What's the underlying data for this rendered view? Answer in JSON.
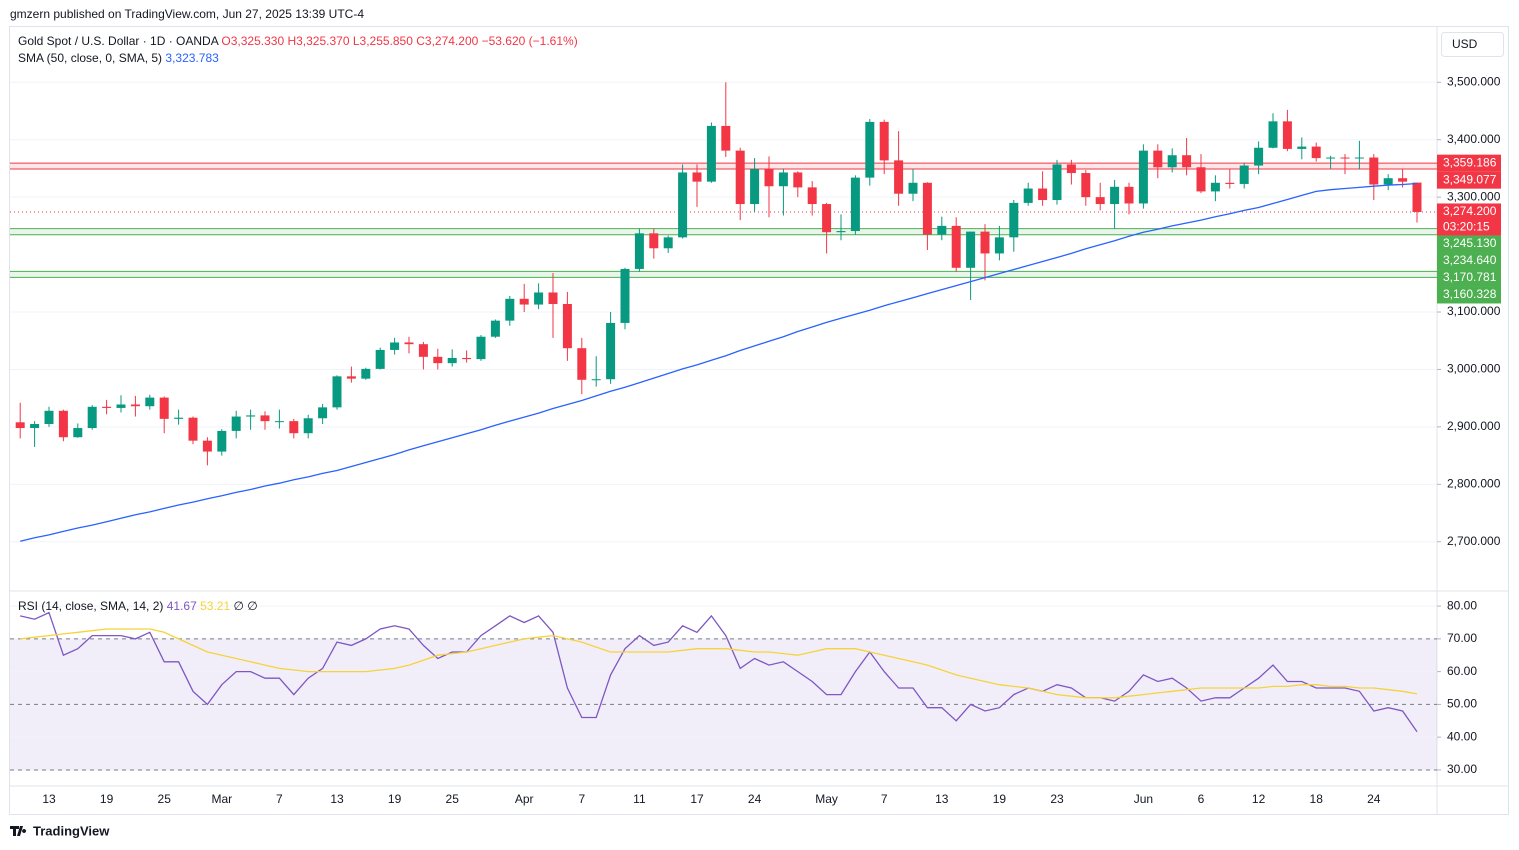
{
  "header": "gmzern published on TradingView.com, Jun 27, 2025 13:39 UTC-4",
  "footer": "TradingView",
  "chart_data": [
    {
      "type": "candlestick",
      "title": "Gold Spot / U.S. Dollar · 1D · OANDA",
      "ohlc_text": "O3,325.330 H3,325.370 L3,255.850 C3,274.200 −53.620 (−1.61%)",
      "currency": "USD",
      "up_color": "#089981",
      "down_color": "#f23645",
      "categories": [
        null,
        null,
        "13",
        null,
        null,
        null,
        "19",
        null,
        null,
        null,
        "25",
        null,
        null,
        null,
        "Mar",
        null,
        null,
        null,
        "7",
        null,
        null,
        null,
        "13",
        null,
        null,
        null,
        "19",
        null,
        null,
        null,
        "25",
        null,
        null,
        null,
        null,
        "Apr",
        null,
        null,
        null,
        "7",
        null,
        null,
        null,
        "11",
        null,
        null,
        null,
        "17",
        null,
        null,
        null,
        "24",
        null,
        null,
        null,
        null,
        "May",
        null,
        null,
        null,
        "7",
        null,
        null,
        null,
        "13",
        null,
        null,
        null,
        "19",
        null,
        null,
        null,
        "23",
        null,
        null,
        null,
        null,
        null,
        "Jun",
        null,
        null,
        null,
        "6",
        null,
        null,
        null,
        "12",
        null,
        null,
        null,
        "18",
        null,
        null,
        null,
        "24",
        null,
        null,
        null
      ],
      "ohlc": [
        [
          2908,
          2942,
          2880,
          2898
        ],
        [
          2898,
          2910,
          2865,
          2905
        ],
        [
          2905,
          2935,
          2900,
          2928
        ],
        [
          2928,
          2930,
          2875,
          2882
        ],
        [
          2882,
          2906,
          2881,
          2898
        ],
        [
          2898,
          2938,
          2895,
          2935
        ],
        [
          2935,
          2947,
          2922,
          2933
        ],
        [
          2933,
          2955,
          2925,
          2939
        ],
        [
          2939,
          2954,
          2918,
          2936
        ],
        [
          2936,
          2956,
          2930,
          2951
        ],
        [
          2951,
          2953,
          2889,
          2914
        ],
        [
          2914,
          2930,
          2904,
          2916
        ],
        [
          2916,
          2918,
          2870,
          2876
        ],
        [
          2876,
          2882,
          2833,
          2857
        ],
        [
          2857,
          2896,
          2850,
          2893
        ],
        [
          2893,
          2928,
          2880,
          2918
        ],
        [
          2918,
          2930,
          2895,
          2920
        ],
        [
          2920,
          2927,
          2895,
          2910
        ],
        [
          2910,
          2930,
          2897,
          2910
        ],
        [
          2910,
          2914,
          2880,
          2889
        ],
        [
          2889,
          2921,
          2880,
          2915
        ],
        [
          2915,
          2940,
          2905,
          2934
        ],
        [
          2934,
          2990,
          2930,
          2988
        ],
        [
          2988,
          3005,
          2977,
          2984
        ],
        [
          2984,
          3003,
          2982,
          3001
        ],
        [
          3001,
          3038,
          3000,
          3034
        ],
        [
          3034,
          3055,
          3026,
          3047
        ],
        [
          3047,
          3057,
          3028,
          3044
        ],
        [
          3044,
          3048,
          3000,
          3022
        ],
        [
          3022,
          3036,
          3000,
          3011
        ],
        [
          3011,
          3035,
          3005,
          3020
        ],
        [
          3020,
          3033,
          3012,
          3018
        ],
        [
          3018,
          3060,
          3015,
          3057
        ],
        [
          3057,
          3087,
          3055,
          3085
        ],
        [
          3085,
          3128,
          3076,
          3123
        ],
        [
          3123,
          3149,
          3100,
          3113
        ],
        [
          3113,
          3150,
          3105,
          3134
        ],
        [
          3134,
          3168,
          3055,
          3114
        ],
        [
          3114,
          3135,
          3015,
          3037
        ],
        [
          3037,
          3055,
          2957,
          2982
        ],
        [
          2982,
          3023,
          2970,
          2983
        ],
        [
          2983,
          3100,
          2975,
          3081
        ],
        [
          3081,
          3177,
          3070,
          3175
        ],
        [
          3175,
          3245,
          3170,
          3237
        ],
        [
          3237,
          3245,
          3193,
          3211
        ],
        [
          3211,
          3233,
          3203,
          3230
        ],
        [
          3230,
          3357,
          3228,
          3343
        ],
        [
          3343,
          3357,
          3283,
          3327
        ],
        [
          3327,
          3430,
          3325,
          3424
        ],
        [
          3424,
          3500,
          3370,
          3381
        ],
        [
          3381,
          3386,
          3260,
          3288
        ],
        [
          3288,
          3368,
          3275,
          3349
        ],
        [
          3349,
          3371,
          3265,
          3319
        ],
        [
          3319,
          3350,
          3268,
          3343
        ],
        [
          3343,
          3345,
          3300,
          3317
        ],
        [
          3317,
          3328,
          3268,
          3288
        ],
        [
          3288,
          3290,
          3202,
          3239
        ],
        [
          3239,
          3270,
          3225,
          3241
        ],
        [
          3241,
          3338,
          3235,
          3334
        ],
        [
          3334,
          3436,
          3320,
          3431
        ],
        [
          3431,
          3435,
          3340,
          3364
        ],
        [
          3364,
          3415,
          3285,
          3306
        ],
        [
          3306,
          3349,
          3293,
          3325
        ],
        [
          3325,
          3326,
          3208,
          3235
        ],
        [
          3235,
          3266,
          3225,
          3250
        ],
        [
          3250,
          3265,
          3170,
          3177
        ],
        [
          3177,
          3240,
          3121,
          3240
        ],
        [
          3240,
          3253,
          3155,
          3202
        ],
        [
          3202,
          3250,
          3190,
          3230
        ],
        [
          3230,
          3295,
          3205,
          3290
        ],
        [
          3290,
          3325,
          3285,
          3315
        ],
        [
          3315,
          3345,
          3285,
          3295
        ],
        [
          3295,
          3365,
          3287,
          3357
        ],
        [
          3357,
          3365,
          3322,
          3342
        ],
        [
          3342,
          3347,
          3285,
          3300
        ],
        [
          3300,
          3325,
          3277,
          3288
        ],
        [
          3288,
          3330,
          3245,
          3318
        ],
        [
          3318,
          3325,
          3270,
          3289
        ],
        [
          3289,
          3392,
          3280,
          3381
        ],
        [
          3381,
          3392,
          3333,
          3352
        ],
        [
          3352,
          3385,
          3343,
          3373
        ],
        [
          3373,
          3403,
          3338,
          3352
        ],
        [
          3352,
          3375,
          3307,
          3310
        ],
        [
          3310,
          3338,
          3293,
          3325
        ],
        [
          3325,
          3349,
          3315,
          3323
        ],
        [
          3323,
          3360,
          3315,
          3355
        ],
        [
          3355,
          3397,
          3340,
          3386
        ],
        [
          3386,
          3446,
          3385,
          3432
        ],
        [
          3432,
          3452,
          3380,
          3384
        ],
        [
          3384,
          3404,
          3366,
          3388
        ],
        [
          3388,
          3395,
          3362,
          3368
        ],
        [
          3368,
          3372,
          3350,
          3369
        ],
        [
          3369,
          3375,
          3340,
          3368
        ],
        [
          3368,
          3398,
          3348,
          3369
        ],
        [
          3369,
          3375,
          3295,
          3322
        ],
        [
          3322,
          3340,
          3312,
          3333
        ],
        [
          3333,
          3350,
          3317,
          3327
        ],
        [
          3325.33,
          3325.37,
          3255.85,
          3274.2
        ]
      ],
      "series": [
        {
          "name": "SMA (50, close, 0, SMA, 5)",
          "value_label": "3,323.783",
          "color": "#2962ff",
          "values": [
            2701,
            2707,
            2712,
            2718,
            2724,
            2729,
            2735,
            2741,
            2747,
            2752,
            2758,
            2764,
            2769,
            2775,
            2780,
            2786,
            2791,
            2797,
            2802,
            2808,
            2813,
            2819,
            2824,
            2831,
            2838,
            2845,
            2852,
            2860,
            2867,
            2874,
            2881,
            2888,
            2895,
            2903,
            2910,
            2917,
            2924,
            2932,
            2939,
            2946,
            2954,
            2962,
            2969,
            2977,
            2985,
            2993,
            3001,
            3008,
            3016,
            3024,
            3033,
            3041,
            3049,
            3057,
            3066,
            3074,
            3082,
            3089,
            3096,
            3103,
            3111,
            3118,
            3125,
            3132,
            3139,
            3146,
            3153,
            3160,
            3167,
            3174,
            3181,
            3188,
            3195,
            3202,
            3210,
            3217,
            3224,
            3232,
            3239,
            3244,
            3250,
            3255,
            3260,
            3266,
            3271,
            3277,
            3282,
            3289,
            3296,
            3303,
            3310,
            3313,
            3315,
            3317,
            3319,
            3321,
            3322,
            3323.783
          ]
        }
      ],
      "zones": [
        {
          "color": "#f23645",
          "high": {
            "value": 3359.186,
            "label": "3,359.186"
          },
          "low": {
            "value": 3349.077,
            "label": "3,349.077"
          }
        },
        {
          "color": "#4caf50",
          "high": {
            "value": 3245.13,
            "label": "3,245.130"
          },
          "low": {
            "value": 3234.64,
            "label": "3,234.640"
          }
        },
        {
          "color": "#4caf50",
          "high": {
            "value": 3170.781,
            "label": "3,170.781"
          },
          "low": {
            "value": 3160.328,
            "label": "3,160.328"
          }
        }
      ],
      "last_price": {
        "value": 3274.2,
        "label": "3,274.200"
      },
      "countdown": "03:20:15",
      "ylim": [
        2616,
        3598
      ],
      "yticks": [
        {
          "value": 2700,
          "label": "2,700.000"
        },
        {
          "value": 2800,
          "label": "2,800.000"
        },
        {
          "value": 2900,
          "label": "2,900.000"
        },
        {
          "value": 3000,
          "label": "3,000.000"
        },
        {
          "value": 3100,
          "label": "3,100.000"
        },
        {
          "value": 3300,
          "label": "3,300.000"
        },
        {
          "value": 3400,
          "label": "3,400.000"
        },
        {
          "value": 3500,
          "label": "3,500.000"
        }
      ],
      "grid": true
    },
    {
      "type": "line",
      "title": "RSI (14, close, SMA, 14, 2)",
      "extra": "∅ ∅",
      "series": [
        {
          "value_label": "41.67",
          "color": "#7e57c2",
          "values": [
            77,
            76,
            78,
            65,
            67,
            71,
            71,
            71,
            70,
            72,
            63,
            63,
            54,
            50,
            56,
            60,
            60,
            58,
            58,
            53,
            58,
            61,
            69,
            68,
            70,
            73,
            74,
            73,
            68,
            64,
            66,
            66,
            71,
            74,
            77,
            75,
            77,
            72,
            55,
            46,
            46,
            59,
            67,
            71,
            68,
            69,
            74,
            72,
            77,
            71,
            61,
            64,
            62,
            63,
            60,
            57,
            53,
            53,
            60,
            66,
            60,
            55,
            55,
            49,
            49,
            45,
            50,
            48,
            49,
            53,
            55,
            54,
            56,
            55,
            52,
            52,
            51,
            54,
            59,
            57,
            58,
            55,
            51,
            52,
            52,
            55,
            58,
            62,
            57,
            57,
            55,
            55,
            55,
            54,
            48,
            49,
            48,
            41.67
          ]
        },
        {
          "value_label": "53.21",
          "color": "#f5d33b",
          "values": [
            70,
            70.5,
            71,
            71.5,
            72,
            72.5,
            73,
            73,
            73,
            73,
            72,
            70,
            68,
            66,
            65,
            64,
            63,
            62,
            61,
            60.5,
            60,
            60,
            60,
            60,
            60,
            60.5,
            61,
            62,
            63.5,
            65,
            65.5,
            66,
            67,
            68,
            69,
            70,
            70.5,
            71,
            70,
            69,
            67.5,
            66,
            66,
            66,
            66,
            66,
            66.5,
            67,
            67,
            67,
            66.5,
            66,
            66,
            65.5,
            65,
            66,
            67,
            67,
            67,
            66,
            65,
            64,
            63,
            62,
            60.5,
            59,
            58,
            57,
            56,
            55.5,
            55,
            54,
            53,
            52.5,
            52,
            52,
            52,
            52.5,
            53,
            53.5,
            54,
            54.5,
            55,
            55,
            55,
            55,
            55,
            55.5,
            55.5,
            56,
            56,
            55.5,
            55.5,
            55,
            55,
            54.5,
            54,
            53.21
          ]
        }
      ],
      "band": [
        30,
        70
      ],
      "midline": 50,
      "ylim": [
        25.1,
        84.3
      ],
      "yticks": [
        {
          "value": 30,
          "label": "30.00"
        },
        {
          "value": 40,
          "label": "40.00"
        },
        {
          "value": 50,
          "label": "50.00"
        },
        {
          "value": 60,
          "label": "60.00"
        },
        {
          "value": 70,
          "label": "70.00"
        },
        {
          "value": 80,
          "label": "80.00"
        }
      ]
    }
  ]
}
